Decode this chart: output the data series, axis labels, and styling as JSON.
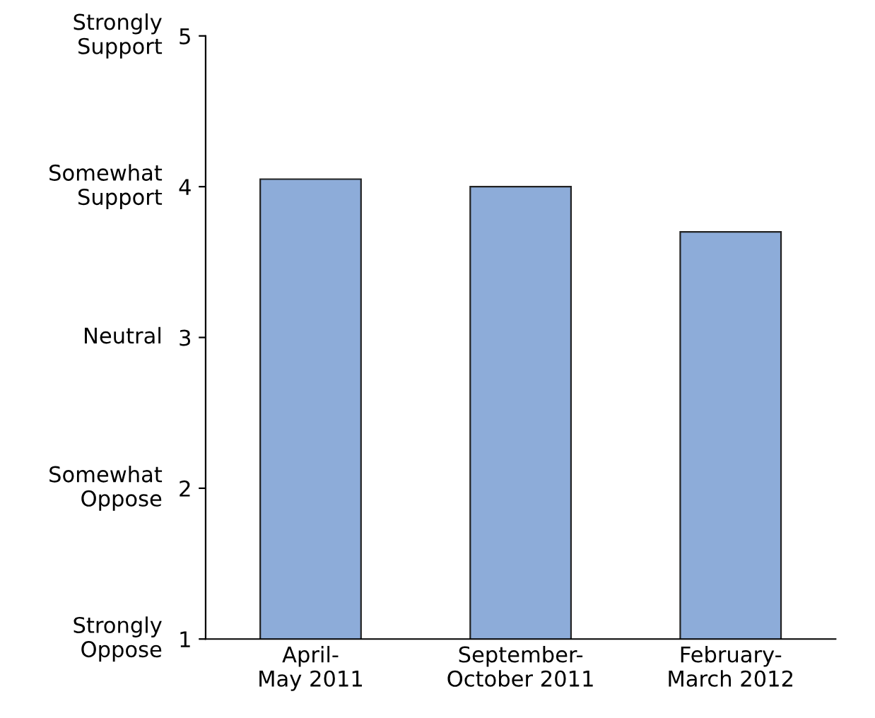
{
  "chart_data": {
    "type": "bar",
    "categories": [
      "April-\nMay 2011",
      "September-\nOctober 2011",
      "February-\nMarch 2012"
    ],
    "values": [
      4.05,
      4.0,
      3.7
    ],
    "color": "#8dacd9",
    "ylim": [
      1,
      5
    ],
    "yticks": [
      1,
      2,
      3,
      4,
      5
    ],
    "annotations": [
      "Strongly\nOppose",
      "Somewhat\nOppose",
      "Neutral",
      "Somewhat\nSupport",
      "Strongly\nSupport"
    ],
    "grid": false
  }
}
